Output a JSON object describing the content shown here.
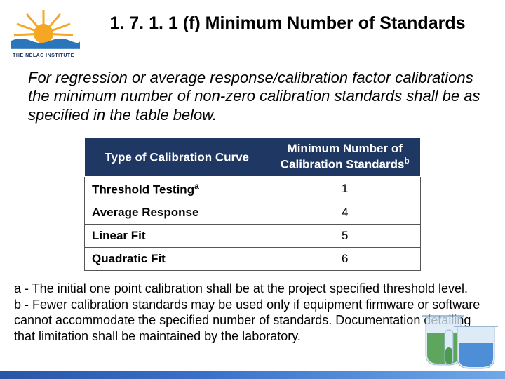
{
  "logo": {
    "name": "THE NELAC INSTITUTE",
    "sun_color": "#f5a623",
    "ray_color": "#f5a623",
    "water_color": "#2b75bb",
    "text_color": "#1f3763"
  },
  "title": "1. 7. 1. 1 (f) Minimum Number of Standards",
  "body": "For regression or average response/calibration factor calibrations the minimum number of non-zero calibration standards shall be as specified in the table below.",
  "table": {
    "header_bg": "#1f3763",
    "header_fg": "#ffffff",
    "border_color": "#555555",
    "columns": [
      {
        "label": "Type of Calibration Curve",
        "sup": ""
      },
      {
        "label": "Minimum Number of Calibration Standards",
        "sup": "b"
      }
    ],
    "rows": [
      {
        "type": "Threshold Testing",
        "sup": "a",
        "num": "1"
      },
      {
        "type": "Average Response",
        "sup": "",
        "num": "4"
      },
      {
        "type": "Linear Fit",
        "sup": "",
        "num": "5"
      },
      {
        "type": "Quadratic Fit",
        "sup": "",
        "num": "6"
      }
    ]
  },
  "footnotes": "a - The initial one point calibration shall be at the project specified threshold level.\nb - Fewer calibration standards may be used only if equipment firmware or software cannot accommodate the specified number of standards. Documentation detailing that limitation shall be maintained by the laboratory.",
  "beakers": {
    "colors": [
      "#2e8b2e",
      "#2e7bd1",
      "#2e8b2e"
    ],
    "glass": "#b9d7ef"
  },
  "footer_gradient": [
    "#2956a6",
    "#3a6fc9",
    "#6fa8e8"
  ]
}
